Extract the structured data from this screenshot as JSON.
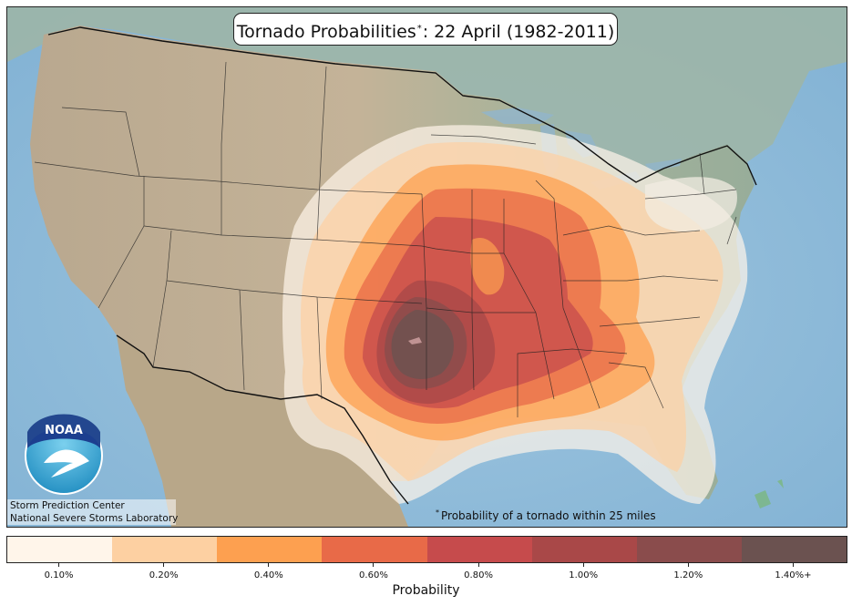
{
  "title": {
    "text": "Tornado Probabilities",
    "marker": "*",
    "date": ": 22 April (1982-2011)"
  },
  "credits": {
    "logo_text": "NOAA",
    "line1": "Storm Prediction Center",
    "line2": "National Severe Storms Laboratory"
  },
  "footnote": {
    "marker": "*",
    "text": "Probability of a tornado within 25 miles"
  },
  "legend": {
    "label": "Probability",
    "bins": [
      {
        "label": "0.10%",
        "color": "#fff5ea"
      },
      {
        "label": "0.20%",
        "color": "#fdd0a2"
      },
      {
        "label": "0.40%",
        "color": "#fda050"
      },
      {
        "label": "0.60%",
        "color": "#e86a48"
      },
      {
        "label": "0.80%",
        "color": "#c64b4c"
      },
      {
        "label": "1.00%",
        "color": "#a94848"
      },
      {
        "label": "1.20%",
        "color": "#8a4c4c"
      },
      {
        "label": "1.40%+",
        "color": "#6b5250"
      }
    ]
  }
}
